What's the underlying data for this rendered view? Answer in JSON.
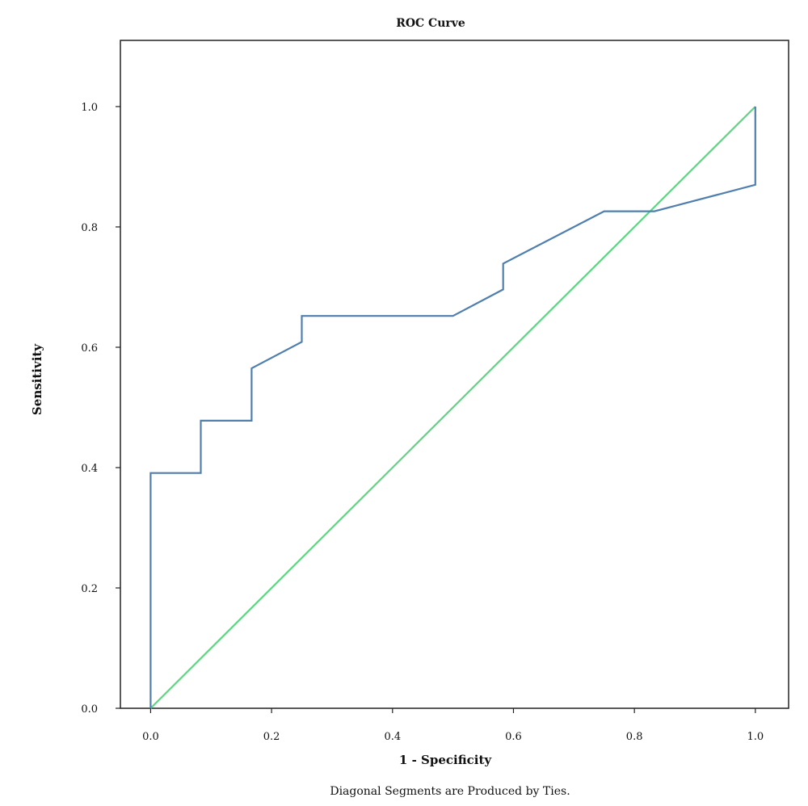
{
  "chart_data": {
    "type": "line",
    "title": "ROC Curve",
    "xlabel": "1 - Specificity",
    "ylabel": "Sensitivity",
    "footnote": "Diagonal Segments are Produced by Ties.",
    "xlim": [
      -0.05,
      1.055
    ],
    "ylim": [
      0.0,
      1.11
    ],
    "x_ticks": [
      0.0,
      0.2,
      0.4,
      0.6,
      0.8,
      1.0
    ],
    "y_ticks": [
      0.0,
      0.2,
      0.4,
      0.6,
      0.8,
      1.0
    ],
    "x_tick_labels": [
      "0.0",
      "0.2",
      "0.4",
      "0.6",
      "0.8",
      "1.0"
    ],
    "y_tick_labels": [
      "0.0",
      "0.2",
      "0.4",
      "0.6",
      "0.8",
      "1.0"
    ],
    "grid": false,
    "series": [
      {
        "color": "#4f7fae",
        "points": [
          [
            0.0,
            0.0
          ],
          [
            0.0,
            0.391
          ],
          [
            0.083,
            0.391
          ],
          [
            0.083,
            0.478
          ],
          [
            0.167,
            0.478
          ],
          [
            0.167,
            0.565
          ],
          [
            0.25,
            0.609
          ],
          [
            0.25,
            0.652
          ],
          [
            0.5,
            0.652
          ],
          [
            0.583,
            0.696
          ],
          [
            0.583,
            0.739
          ],
          [
            0.75,
            0.826
          ],
          [
            0.833,
            0.826
          ],
          [
            1.0,
            0.87
          ],
          [
            1.0,
            1.0
          ]
        ]
      },
      {
        "color": "#5fd482",
        "points": [
          [
            0.0,
            0.0
          ],
          [
            1.0,
            1.0
          ]
        ]
      }
    ]
  }
}
